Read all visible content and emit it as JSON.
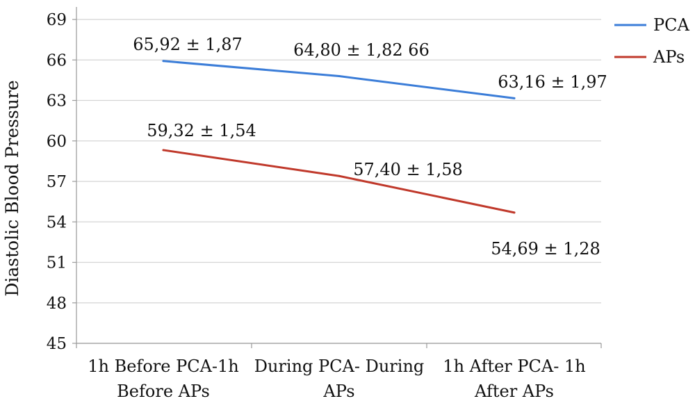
{
  "chart_data": {
    "type": "line",
    "title": "",
    "xlabel": "",
    "ylabel": "Diastolic Blood Pressure",
    "ylim": [
      45,
      69
    ],
    "yticks": [
      45,
      48,
      51,
      54,
      57,
      60,
      63,
      66,
      69
    ],
    "grid": "horizontal",
    "legend_position": "top-right",
    "categories": [
      [
        "1h Before PCA-1h",
        "Before APs"
      ],
      [
        "During PCA- During",
        "APs"
      ],
      [
        "1h After PCA- 1h",
        "After APs"
      ]
    ],
    "series": [
      {
        "name": "PCA",
        "color": "#3b7dd8",
        "values": [
          65.92,
          64.8,
          63.16
        ],
        "labels": [
          "65,92 ± 1,87",
          "64,80 ± 1,82 66",
          "63,16 ± 1,97"
        ]
      },
      {
        "name": "APs",
        "color": "#c0392b",
        "values": [
          59.32,
          57.4,
          54.69
        ],
        "labels": [
          "59,32 ± 1,54",
          "57,40 ± 1,58",
          "54,69 ± 1,28"
        ]
      }
    ]
  }
}
